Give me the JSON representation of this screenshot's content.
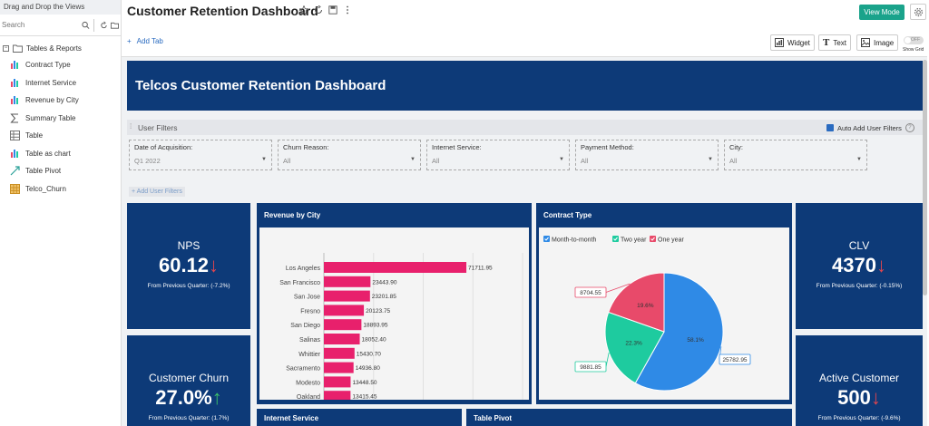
{
  "sidebar": {
    "header": "Drag and Drop the Views",
    "search_placeholder": "Search",
    "root_label": "Tables & Reports",
    "items": [
      {
        "label": "Contract Type",
        "icon": "bar-chart-icon"
      },
      {
        "label": "Internet Service",
        "icon": "bar-chart-icon"
      },
      {
        "label": "Revenue by City",
        "icon": "bar-chart-icon"
      },
      {
        "label": "Summary Table",
        "icon": "sigma-icon"
      },
      {
        "label": "Table",
        "icon": "table-icon"
      },
      {
        "label": "Table as chart",
        "icon": "bar-chart-icon"
      },
      {
        "label": "Table Pivot",
        "icon": "pivot-icon"
      },
      {
        "label": "Telco_Churn",
        "icon": "grid-icon"
      }
    ]
  },
  "header": {
    "title": "Customer Retention Dashboard",
    "view_mode": "View Mode",
    "add_tab": "Add Tab",
    "widget": "Widget",
    "text": "Text",
    "image": "Image",
    "toggle_state": "OFF",
    "show_grid": "Show Grid"
  },
  "banner": {
    "title": "Telcos Customer Retention Dashboard"
  },
  "filters": {
    "heading": "User Filters",
    "auto_add": "Auto Add User Filters",
    "add_button": "+ Add User Filters",
    "boxes": [
      {
        "label": "Date of Acquisition:",
        "value": "Q1 2022"
      },
      {
        "label": "Churn Reason:",
        "value": "All"
      },
      {
        "label": "Internet Service:",
        "value": "All"
      },
      {
        "label": "Payment Method:",
        "value": "All"
      },
      {
        "label": "City:",
        "value": "All"
      }
    ]
  },
  "kpis": {
    "nps": {
      "title": "NPS",
      "value": "60.12",
      "arrow": "↓",
      "sub": "From Previous Quarter: (-7.2%)"
    },
    "clv": {
      "title": "CLV",
      "value": "4370",
      "arrow": "↓",
      "sub": "From Previous Quarter: (-0.15%)"
    },
    "churn": {
      "title": "Customer Churn",
      "value": "27.0%",
      "arrow": "↑",
      "sub": "From Previous Quarter: (1.7%)"
    },
    "active": {
      "title": "Active Customer",
      "value": "500",
      "arrow": "↓",
      "sub": "From Previous Quarter: (-9.6%)"
    }
  },
  "panels": {
    "revenue": "Revenue by City",
    "contract": "Contract Type",
    "internet": "Internet Service",
    "pivot": "Table Pivot"
  },
  "colors": {
    "navy": "#0d3a78",
    "bar": "#e8206c",
    "pie_month": "#2f8ae6",
    "pie_two": "#1ecb9f",
    "pie_one": "#e84a6a",
    "accent": "#1aa38b"
  },
  "chart_data": [
    {
      "type": "bar",
      "orientation": "horizontal",
      "title": "Revenue by City",
      "categories": [
        "Los Angeles",
        "San Francisco",
        "San Jose",
        "Fresno",
        "San Diego",
        "Salinas",
        "Whittier",
        "Sacramento",
        "Modesto",
        "Oakland"
      ],
      "values": [
        71711.95,
        23443.9,
        23201.85,
        20123.75,
        18893.95,
        18052.4,
        15430.7,
        14936.8,
        13448.5,
        13415.45
      ],
      "labels": [
        "71711.95",
        "23443.90",
        "23201.85",
        "20123.75",
        "18893.95",
        "18052.40",
        "15430.70",
        "14936.80",
        "13448.50",
        "13415.45"
      ],
      "xlim": [
        0,
        100000
      ],
      "grid": true
    },
    {
      "type": "pie",
      "title": "Contract Type",
      "legend": [
        "Month-to-month",
        "Two year",
        "One year"
      ],
      "values": [
        25782.95,
        9881.85,
        8704.55
      ],
      "value_labels": [
        "25782.95",
        "9881.85",
        "8704.55"
      ],
      "percent_labels": [
        "58.1%",
        "22.3%",
        "19.6%"
      ],
      "legend_placement": "top-left"
    }
  ]
}
